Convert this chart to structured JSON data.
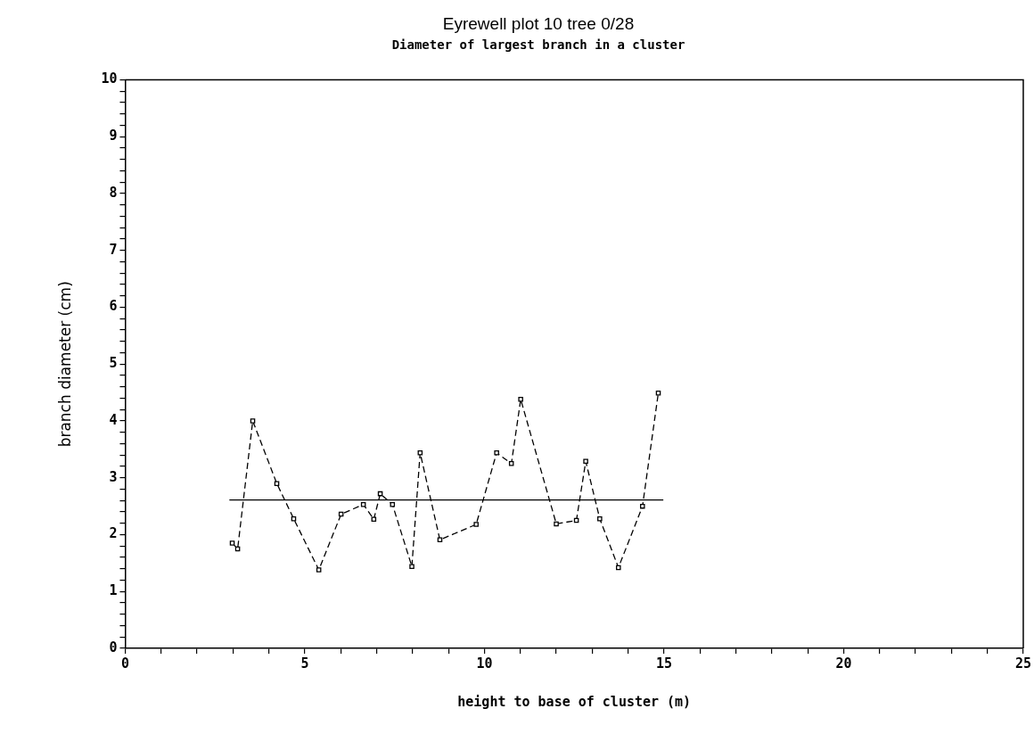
{
  "chart_data": {
    "type": "line",
    "title": "Eyrewell plot 10 tree 0/28",
    "subtitle": "Diameter of largest branch in a cluster",
    "xlabel": "height to base of cluster (m)",
    "ylabel": "branch diameter (cm)",
    "xlim": [
      0,
      25
    ],
    "ylim": [
      0,
      10
    ],
    "xticks": [
      0,
      {
        "value": 1,
        "label": null
      },
      {
        "value": 2,
        "label": null
      },
      {
        "value": 3,
        "label": null
      },
      {
        "value": 4,
        "label": null
      },
      5,
      {
        "value": 6,
        "label": null
      },
      {
        "value": 7,
        "label": null
      },
      {
        "value": 8,
        "label": null
      },
      {
        "value": 9,
        "label": null
      },
      10,
      {
        "value": 11,
        "label": null
      },
      {
        "value": 12,
        "label": null
      },
      {
        "value": 13,
        "label": null
      },
      {
        "value": 14,
        "label": null
      },
      15,
      {
        "value": 16,
        "label": null
      },
      {
        "value": 17,
        "label": null
      },
      {
        "value": 18,
        "label": null
      },
      {
        "value": 19,
        "label": null
      },
      20,
      {
        "value": 21,
        "label": null
      },
      {
        "value": 22,
        "label": null
      },
      {
        "value": 23,
        "label": null
      },
      {
        "value": 24,
        "label": null
      },
      25
    ],
    "yticks": [
      0,
      {
        "value": 0.2,
        "label": null
      },
      {
        "value": 0.4,
        "label": null
      },
      {
        "value": 0.6,
        "label": null
      },
      {
        "value": 0.8,
        "label": null
      },
      1,
      {
        "value": 1.2,
        "label": null
      },
      {
        "value": 1.4,
        "label": null
      },
      {
        "value": 1.6,
        "label": null
      },
      {
        "value": 1.8,
        "label": null
      },
      2,
      {
        "value": 2.2,
        "label": null
      },
      {
        "value": 2.4,
        "label": null
      },
      {
        "value": 2.6,
        "label": null
      },
      {
        "value": 2.8,
        "label": null
      },
      3,
      {
        "value": 3.2,
        "label": null
      },
      {
        "value": 3.4,
        "label": null
      },
      {
        "value": 3.6,
        "label": null
      },
      {
        "value": 3.8,
        "label": null
      },
      4,
      {
        "value": 4.2,
        "label": null
      },
      {
        "value": 4.4,
        "label": null
      },
      {
        "value": 4.6,
        "label": null
      },
      {
        "value": 4.8,
        "label": null
      },
      5,
      {
        "value": 5.2,
        "label": null
      },
      {
        "value": 5.4,
        "label": null
      },
      {
        "value": 5.6,
        "label": null
      },
      {
        "value": 5.8,
        "label": null
      },
      6,
      {
        "value": 6.2,
        "label": null
      },
      {
        "value": 6.4,
        "label": null
      },
      {
        "value": 6.6,
        "label": null
      },
      {
        "value": 6.8,
        "label": null
      },
      7,
      {
        "value": 7.2,
        "label": null
      },
      {
        "value": 7.4,
        "label": null
      },
      {
        "value": 7.6,
        "label": null
      },
      {
        "value": 7.8,
        "label": null
      },
      8,
      {
        "value": 8.2,
        "label": null
      },
      {
        "value": 8.4,
        "label": null
      },
      {
        "value": 8.6,
        "label": null
      },
      {
        "value": 8.8,
        "label": null
      },
      9,
      {
        "value": 9.2,
        "label": null
      },
      {
        "value": 9.4,
        "label": null
      },
      {
        "value": 9.6,
        "label": null
      },
      {
        "value": 9.8,
        "label": null
      },
      10
    ],
    "grid": false,
    "legend": false,
    "series": [
      {
        "color": "#000000",
        "marker": "square",
        "line_style": "dashed",
        "x": [
          2.98,
          3.13,
          3.55,
          4.22,
          4.69,
          5.39,
          6.01,
          6.63,
          6.92,
          7.1,
          7.44,
          7.98,
          8.21,
          8.76,
          9.77,
          10.34,
          10.75,
          11.01,
          12.0,
          12.56,
          12.82,
          13.21,
          13.73,
          14.4,
          14.84
        ],
        "values": [
          1.85,
          1.75,
          4.0,
          2.9,
          2.28,
          1.38,
          2.36,
          2.53,
          2.27,
          2.72,
          2.53,
          1.44,
          3.44,
          1.91,
          2.18,
          3.44,
          3.25,
          4.38,
          2.19,
          2.25,
          3.29,
          2.28,
          1.42,
          2.5,
          4.49
        ]
      },
      {
        "color": "#000000",
        "marker": "none",
        "line_style": "solid",
        "x": [
          2.9,
          14.98
        ],
        "values": [
          2.61,
          2.61
        ]
      }
    ]
  }
}
